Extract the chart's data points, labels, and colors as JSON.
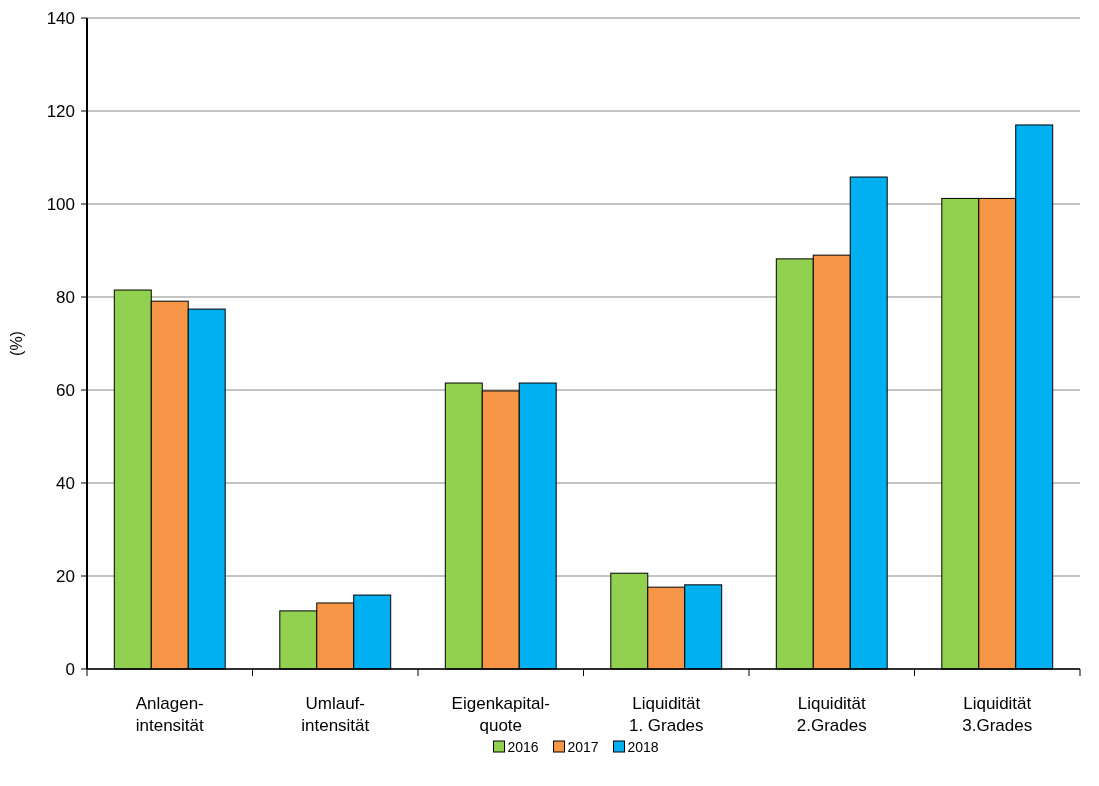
{
  "chart_data": {
    "type": "bar",
    "ylabel": "(%)",
    "categories": [
      "Anlagen-\nintensität",
      "Umlauf-\nintensität",
      "Eigenkapital-\nquote",
      "Liquidität\n1. Grades",
      "Liquidität\n2.Grades",
      "Liquidität\n3.Grades"
    ],
    "series": [
      {
        "name": "2016",
        "color": "#92d050",
        "values": [
          81.5,
          12.5,
          61.5,
          20.6,
          88.2,
          101.2
        ]
      },
      {
        "name": "2017",
        "color": "#f79646",
        "values": [
          79.1,
          14.2,
          59.8,
          17.6,
          89.0,
          101.2
        ]
      },
      {
        "name": "2018",
        "color": "#00b0f0",
        "values": [
          77.4,
          15.9,
          61.5,
          18.1,
          105.8,
          117.0
        ]
      }
    ],
    "ylim": [
      0,
      140
    ],
    "yticks": [
      0,
      20,
      40,
      60,
      80,
      100,
      120,
      140
    ],
    "grid": "y",
    "legend": "bottom"
  }
}
